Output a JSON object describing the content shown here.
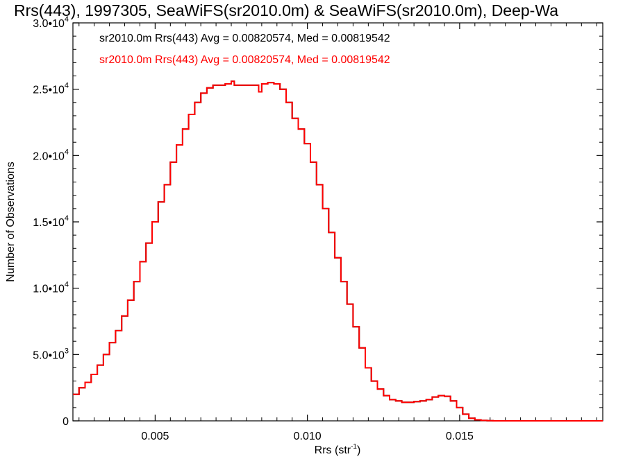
{
  "chart_data": {
    "type": "line",
    "title": "Rrs(443), 1997305, SeaWiFS(sr2010.0m) & SeaWiFS(sr2010.0m), Deep-Wa",
    "xlabel": "Rrs (str",
    "xlabel_sup": "-1",
    "xlabel_close": ")",
    "ylabel": "Number of Observations",
    "xlim": [
      0.0023,
      0.0197
    ],
    "ylim": [
      0,
      30000
    ],
    "x_ticks": [
      {
        "value": 0.005,
        "label": "0.005"
      },
      {
        "value": 0.01,
        "label": "0.010"
      },
      {
        "value": 0.015,
        "label": "0.015"
      }
    ],
    "y_ticks": [
      {
        "value": 0,
        "mant": "0",
        "exp": ""
      },
      {
        "value": 5000,
        "mant": "5.0•10",
        "exp": "3"
      },
      {
        "value": 10000,
        "mant": "1.0•10",
        "exp": "4"
      },
      {
        "value": 15000,
        "mant": "1.5•10",
        "exp": "4"
      },
      {
        "value": 20000,
        "mant": "2.0•10",
        "exp": "4"
      },
      {
        "value": 25000,
        "mant": "2.5•10",
        "exp": "4"
      },
      {
        "value": 30000,
        "mant": "3.0•10",
        "exp": "4"
      }
    ],
    "legend_placement": "top-left",
    "series": [
      {
        "name": "sr2010.0m Rrs(443) Avg = 0.00820574, Med = 0.00819542",
        "color": "#000000",
        "style": "step",
        "x": [
          0.0023,
          0.0025,
          0.0027,
          0.0029,
          0.0031,
          0.0033,
          0.0035,
          0.0037,
          0.0039,
          0.0041,
          0.0043,
          0.0045,
          0.0047,
          0.0049,
          0.0051,
          0.0053,
          0.0055,
          0.0057,
          0.0059,
          0.0061,
          0.0063,
          0.0065,
          0.0067,
          0.0069,
          0.0071,
          0.0073,
          0.0075,
          0.0076,
          0.0077,
          0.0079,
          0.0081,
          0.0083,
          0.0084,
          0.0085,
          0.0086,
          0.0087,
          0.0089,
          0.0091,
          0.0093,
          0.0095,
          0.0097,
          0.0099,
          0.0101,
          0.0103,
          0.0105,
          0.0107,
          0.0109,
          0.0111,
          0.0113,
          0.0115,
          0.0117,
          0.0119,
          0.0121,
          0.0123,
          0.0125,
          0.0127,
          0.0129,
          0.0131,
          0.0133,
          0.0135,
          0.0137,
          0.0139,
          0.0141,
          0.0143,
          0.0145,
          0.0147,
          0.0149,
          0.0151,
          0.0153,
          0.0155,
          0.0157,
          0.0159,
          0.0161,
          0.0163,
          0.0165,
          0.0167,
          0.0169,
          0.0171,
          0.0173,
          0.0175,
          0.0177,
          0.018,
          0.0185,
          0.019,
          0.0197
        ],
        "y": [
          2000,
          2500,
          2900,
          3500,
          4200,
          5000,
          5900,
          6800,
          7900,
          9100,
          10500,
          12000,
          13400,
          15000,
          16500,
          17800,
          19500,
          20800,
          22000,
          23100,
          24000,
          24700,
          25100,
          25300,
          25300,
          25400,
          25600,
          25300,
          25300,
          25300,
          25300,
          25300,
          24800,
          25400,
          25400,
          25500,
          25400,
          25000,
          24000,
          22800,
          22000,
          20900,
          19500,
          17800,
          16000,
          14200,
          12300,
          10500,
          8800,
          7100,
          5500,
          4000,
          3000,
          2400,
          1900,
          1600,
          1500,
          1400,
          1400,
          1450,
          1500,
          1600,
          1800,
          1900,
          1850,
          1500,
          1000,
          500,
          200,
          80,
          30,
          10,
          0,
          0,
          0,
          0,
          0,
          0,
          0,
          0,
          0,
          0,
          0,
          0,
          0
        ]
      },
      {
        "name": "sr2010.0m Rrs(443) Avg = 0.00820574, Med = 0.00819542",
        "color": "#ff0000",
        "style": "step",
        "x": [
          0.0023,
          0.0025,
          0.0027,
          0.0029,
          0.0031,
          0.0033,
          0.0035,
          0.0037,
          0.0039,
          0.0041,
          0.0043,
          0.0045,
          0.0047,
          0.0049,
          0.0051,
          0.0053,
          0.0055,
          0.0057,
          0.0059,
          0.0061,
          0.0063,
          0.0065,
          0.0067,
          0.0069,
          0.0071,
          0.0073,
          0.0075,
          0.0076,
          0.0077,
          0.0079,
          0.0081,
          0.0083,
          0.0084,
          0.0085,
          0.0086,
          0.0087,
          0.0089,
          0.0091,
          0.0093,
          0.0095,
          0.0097,
          0.0099,
          0.0101,
          0.0103,
          0.0105,
          0.0107,
          0.0109,
          0.0111,
          0.0113,
          0.0115,
          0.0117,
          0.0119,
          0.0121,
          0.0123,
          0.0125,
          0.0127,
          0.0129,
          0.0131,
          0.0133,
          0.0135,
          0.0137,
          0.0139,
          0.0141,
          0.0143,
          0.0145,
          0.0147,
          0.0149,
          0.0151,
          0.0153,
          0.0155,
          0.0157,
          0.0159,
          0.0161,
          0.0163,
          0.0165,
          0.0167,
          0.0169,
          0.0171,
          0.0173,
          0.0175,
          0.0177,
          0.018,
          0.0185,
          0.019,
          0.0197
        ],
        "y": [
          2000,
          2500,
          2900,
          3500,
          4200,
          5000,
          5900,
          6800,
          7900,
          9100,
          10500,
          12000,
          13400,
          15000,
          16500,
          17800,
          19500,
          20800,
          22000,
          23100,
          24000,
          24700,
          25100,
          25300,
          25300,
          25400,
          25600,
          25300,
          25300,
          25300,
          25300,
          25300,
          24800,
          25400,
          25400,
          25500,
          25400,
          25000,
          24000,
          22800,
          22000,
          20900,
          19500,
          17800,
          16000,
          14200,
          12300,
          10500,
          8800,
          7100,
          5500,
          4000,
          3000,
          2400,
          1900,
          1600,
          1500,
          1400,
          1400,
          1450,
          1500,
          1600,
          1800,
          1900,
          1850,
          1500,
          1000,
          500,
          200,
          80,
          30,
          10,
          0,
          0,
          0,
          0,
          0,
          0,
          0,
          0,
          0,
          0,
          0,
          0,
          0
        ]
      }
    ]
  }
}
